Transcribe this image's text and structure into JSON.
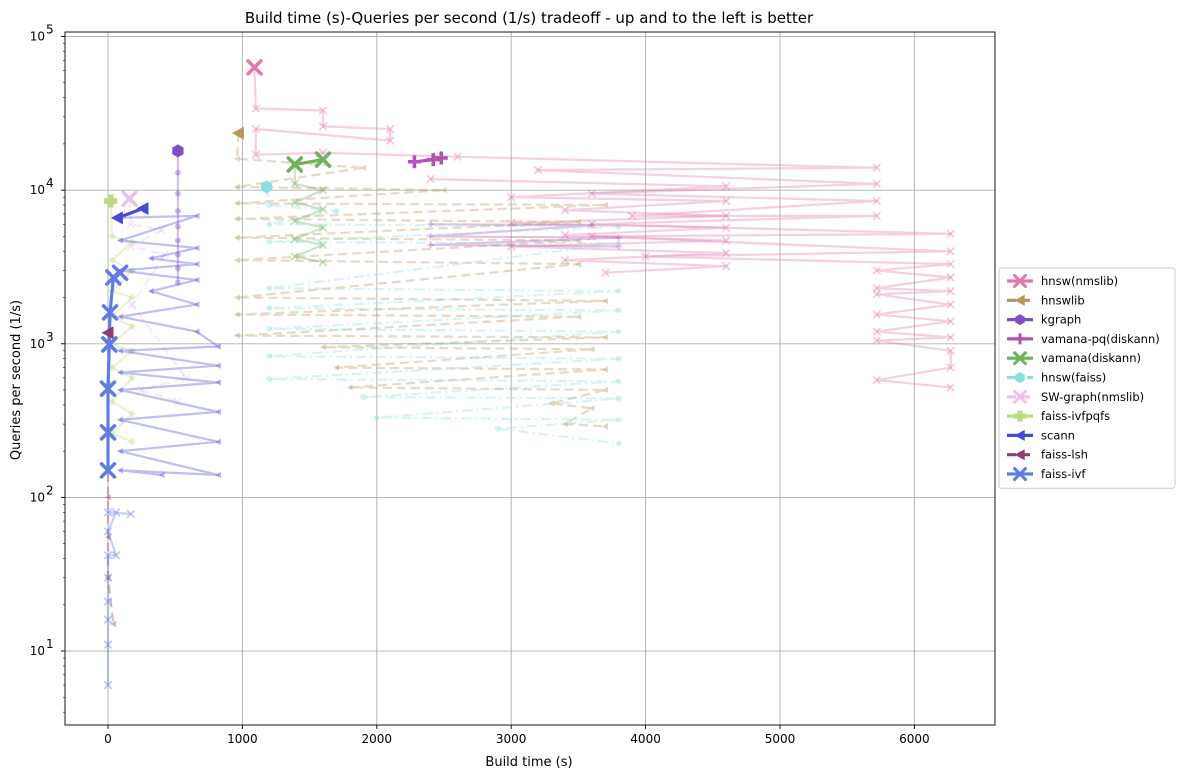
{
  "chart_data": {
    "type": "line",
    "title": "Build time (s)-Queries per second (1/s) tradeoff - up and to the left is better",
    "xlabel": "Build time (s)",
    "ylabel": "Queries per second (1/s)",
    "xscale": "linear",
    "yscale": "log",
    "xlim": [
      -320,
      6600
    ],
    "ylim": [
      3.3,
      107000
    ],
    "x_ticks": [
      0,
      1000,
      2000,
      3000,
      4000,
      5000,
      6000
    ],
    "x_tick_labels": [
      "0",
      "1000",
      "2000",
      "3000",
      "4000",
      "5000",
      "6000"
    ],
    "y_ticks": [
      10,
      100,
      1000,
      10000,
      100000
    ],
    "y_tick_labels": [
      [
        "10",
        "1"
      ],
      [
        "10",
        "2"
      ],
      [
        "10",
        "3"
      ],
      [
        "10",
        "4"
      ],
      [
        "10",
        "5"
      ]
    ],
    "grid": true,
    "legend_position": "outside right",
    "series": [
      {
        "name": "hnsw(nmslib)",
        "color": "#e377b0",
        "marker": "x",
        "linestyle": "solid",
        "frontier": [
          [
            1090,
            63000
          ]
        ],
        "faded": [
          [
            [
              1090,
              63000
            ],
            [
              1100,
              34000
            ],
            [
              1600,
              33000
            ],
            [
              1600,
              26000
            ],
            [
              2100,
              25000
            ],
            [
              2100,
              21000
            ],
            [
              1100,
              25000
            ],
            [
              1100,
              17000
            ],
            [
              1600,
              17500
            ],
            [
              2600,
              16500
            ],
            [
              5720,
              14000
            ],
            [
              3200,
              13500
            ],
            [
              5720,
              11000
            ],
            [
              3600,
              9500
            ],
            [
              5720,
              8500
            ],
            [
              3900,
              6800
            ],
            [
              5720,
              6800
            ],
            [
              3600,
              6000
            ],
            [
              6270,
              5200
            ],
            [
              3600,
              5000
            ],
            [
              6270,
              4000
            ],
            [
              4000,
              3700
            ],
            [
              6270,
              3300
            ],
            [
              5720,
              3000
            ],
            [
              6270,
              2700
            ],
            [
              5720,
              2300
            ],
            [
              6270,
              2200
            ],
            [
              5720,
              2100
            ],
            [
              6270,
              1800
            ],
            [
              5720,
              1550
            ],
            [
              6270,
              1400
            ],
            [
              5720,
              1200
            ],
            [
              6270,
              1100
            ],
            [
              5720,
              1050
            ],
            [
              6270,
              900
            ],
            [
              6270,
              700
            ],
            [
              5720,
              580
            ],
            [
              6270,
              520
            ]
          ],
          [
            [
              2400,
              11800
            ],
            [
              4600,
              10600
            ],
            [
              3000,
              9000
            ],
            [
              4600,
              8500
            ],
            [
              3400,
              7400
            ],
            [
              4600,
              6800
            ],
            [
              3000,
              6100
            ],
            [
              4600,
              5700
            ],
            [
              3400,
              5100
            ],
            [
              4600,
              4700
            ],
            [
              3000,
              4300
            ],
            [
              4600,
              3900
            ],
            [
              3400,
              3500
            ],
            [
              4600,
              3200
            ],
            [
              3700,
              2900
            ]
          ]
        ]
      },
      {
        "name": "hnswlib",
        "color": "#b5985a",
        "marker": "triangle-left",
        "linestyle": "dashed",
        "frontier": [
          [
            970,
            23500
          ]
        ],
        "faded": [
          [
            [
              970,
              23500
            ],
            [
              960,
              16000
            ],
            [
              1900,
              14000
            ],
            [
              960,
              10500
            ],
            [
              2500,
              10000
            ],
            [
              960,
              8200
            ],
            [
              3700,
              8000
            ],
            [
              960,
              6500
            ],
            [
              3500,
              6200
            ],
            [
              960,
              4900
            ],
            [
              3500,
              4700
            ],
            [
              960,
              3500
            ],
            [
              3500,
              3300
            ],
            [
              960,
              2000
            ],
            [
              3700,
              1900
            ],
            [
              960,
              1550
            ],
            [
              3500,
              1500
            ],
            [
              960,
              1130
            ],
            [
              3700,
              1100
            ],
            [
              1600,
              950
            ],
            [
              3600,
              920
            ],
            [
              1700,
              700
            ],
            [
              3700,
              680
            ],
            [
              1800,
              520
            ],
            [
              3700,
              500
            ],
            [
              3300,
              410
            ],
            [
              3600,
              380
            ],
            [
              3400,
              300
            ],
            [
              3700,
              290
            ]
          ]
        ]
      },
      {
        "name": "kgraph",
        "color": "#7f4fc9",
        "marker": "hexagon",
        "linestyle": "solid",
        "frontier": [
          [
            520,
            18000
          ]
        ],
        "faded": [
          [
            [
              520,
              18000
            ],
            [
              520,
              13000
            ],
            [
              520,
              9500
            ],
            [
              520,
              7300
            ],
            [
              520,
              5800
            ],
            [
              520,
              4700
            ],
            [
              520,
              3800
            ],
            [
              520,
              3100
            ],
            [
              520,
              2500
            ]
          ]
        ]
      },
      {
        "name": "vamana-pq(diskann)",
        "color": "#b351b8",
        "marker": "plus",
        "linestyle": "solid",
        "frontier": [
          [
            2280,
            15300
          ],
          [
            2420,
            15800
          ],
          [
            2480,
            16200
          ]
        ],
        "faded": [
          [
            [
              2400,
              6000
            ],
            [
              3600,
              5900
            ],
            [
              2400,
              5000
            ],
            [
              3800,
              4900
            ],
            [
              2400,
              4400
            ],
            [
              3800,
              4300
            ]
          ]
        ]
      },
      {
        "name": "vamana(diskann)",
        "color": "#72b05c",
        "marker": "x",
        "linestyle": "solid",
        "frontier": [
          [
            1390,
            14700
          ],
          [
            1600,
            15800
          ]
        ],
        "faded": [
          [
            [
              1390,
              14700
            ],
            [
              1390,
              11000
            ],
            [
              1600,
              10000
            ],
            [
              1390,
              8300
            ],
            [
              1600,
              7500
            ],
            [
              1390,
              6300
            ],
            [
              1600,
              5700
            ],
            [
              1390,
              4800
            ],
            [
              1600,
              4400
            ],
            [
              1390,
              3700
            ],
            [
              1600,
              3400
            ]
          ]
        ]
      },
      {
        "name": "hnsw(faiss)",
        "color": "#8ddde0",
        "marker": "hexagon",
        "linestyle": "dashdot",
        "frontier": [
          [
            1180,
            10500
          ]
        ],
        "faded": [
          [
            [
              1180,
              10500
            ],
            [
              1200,
              8000
            ],
            [
              1700,
              7300
            ],
            [
              1200,
              6000
            ],
            [
              3800,
              5800
            ],
            [
              1200,
              4600
            ],
            [
              3800,
              4500
            ],
            [
              1200,
              2300
            ],
            [
              3800,
              2200
            ],
            [
              1200,
              1700
            ],
            [
              3800,
              1650
            ],
            [
              1200,
              1250
            ],
            [
              3800,
              1200
            ],
            [
              1200,
              830
            ],
            [
              3800,
              800
            ],
            [
              1200,
              590
            ],
            [
              3800,
              570
            ],
            [
              1900,
              450
            ],
            [
              3800,
              440
            ],
            [
              2000,
              330
            ],
            [
              3800,
              320
            ],
            [
              2900,
              280
            ],
            [
              3800,
              225
            ]
          ]
        ]
      },
      {
        "name": "SW-graph(nmslib)",
        "color": "#e8c2e8",
        "marker": "x",
        "linestyle": "dashed",
        "frontier": [
          [
            160,
            8800
          ]
        ],
        "faded": [
          [
            [
              160,
              8800
            ],
            [
              170,
              6000
            ],
            [
              400,
              5500
            ],
            [
              170,
              4300
            ],
            [
              420,
              3800
            ],
            [
              180,
              1800
            ],
            [
              580,
              600
            ],
            [
              250,
              500
            ],
            [
              520,
              420
            ]
          ]
        ]
      },
      {
        "name": "faiss-ivfpqfs",
        "color": "#b9dc85",
        "marker": "plus-filled",
        "linestyle": "solid",
        "frontier": [
          [
            20,
            8500
          ]
        ],
        "faded": [
          [
            [
              20,
              8500
            ],
            [
              30,
              5000
            ],
            [
              180,
              4600
            ],
            [
              30,
              3500
            ],
            [
              180,
              3000
            ],
            [
              30,
              2200
            ],
            [
              180,
              2000
            ],
            [
              30,
              1500
            ],
            [
              180,
              1300
            ],
            [
              30,
              1000
            ],
            [
              180,
              900
            ],
            [
              30,
              700
            ],
            [
              180,
              600
            ],
            [
              30,
              420
            ],
            [
              180,
              350
            ],
            [
              30,
              260
            ],
            [
              180,
              230
            ]
          ]
        ]
      },
      {
        "name": "scann",
        "color": "#4749d9",
        "marker": "triangle-left",
        "linestyle": "solid",
        "frontier": [
          [
            70,
            6600
          ],
          [
            260,
            7600
          ]
        ],
        "faded": [
          [
            [
              70,
              6600
            ],
            [
              660,
              6800
            ],
            [
              90,
              4700
            ],
            [
              660,
              4200
            ],
            [
              320,
              3600
            ],
            [
              660,
              3300
            ],
            [
              90,
              3000
            ],
            [
              660,
              2600
            ],
            [
              320,
              2200
            ],
            [
              660,
              1800
            ],
            [
              90,
              1500
            ],
            [
              660,
              1200
            ],
            [
              820,
              960
            ],
            [
              90,
              900
            ],
            [
              820,
              720
            ],
            [
              90,
              650
            ],
            [
              820,
              560
            ],
            [
              90,
              500
            ],
            [
              820,
              360
            ],
            [
              90,
              320
            ],
            [
              820,
              230
            ],
            [
              90,
              200
            ],
            [
              820,
              140
            ],
            [
              90,
              150
            ],
            [
              400,
              140
            ]
          ]
        ]
      },
      {
        "name": "faiss-lsh",
        "color": "#8f3d70",
        "marker": "triangle-left",
        "linestyle": "dashed",
        "frontier": [
          [
            0,
            1180
          ]
        ],
        "faded": [
          [
            [
              0,
              1180
            ],
            [
              0,
              550
            ],
            [
              0,
              100
            ],
            [
              0,
              55
            ],
            [
              0,
              30
            ],
            [
              40,
              15
            ]
          ]
        ]
      },
      {
        "name": "faiss-ivf",
        "color": "#5f7de0",
        "marker": "x",
        "linestyle": "solid",
        "frontier": [
          [
            0,
            150
          ],
          [
            0,
            265
          ],
          [
            0,
            510
          ],
          [
            10,
            990
          ],
          [
            15,
            1600
          ],
          [
            40,
            2700
          ],
          [
            90,
            2900
          ]
        ],
        "faded": [
          [
            [
              0,
              6
            ],
            [
              0,
              11
            ],
            [
              0,
              16
            ],
            [
              0,
              21
            ],
            [
              0,
              30
            ],
            [
              0,
              42
            ],
            [
              60,
              42
            ],
            [
              0,
              60
            ],
            [
              60,
              80
            ],
            [
              0,
              80
            ],
            [
              170,
              78
            ]
          ]
        ]
      }
    ]
  }
}
